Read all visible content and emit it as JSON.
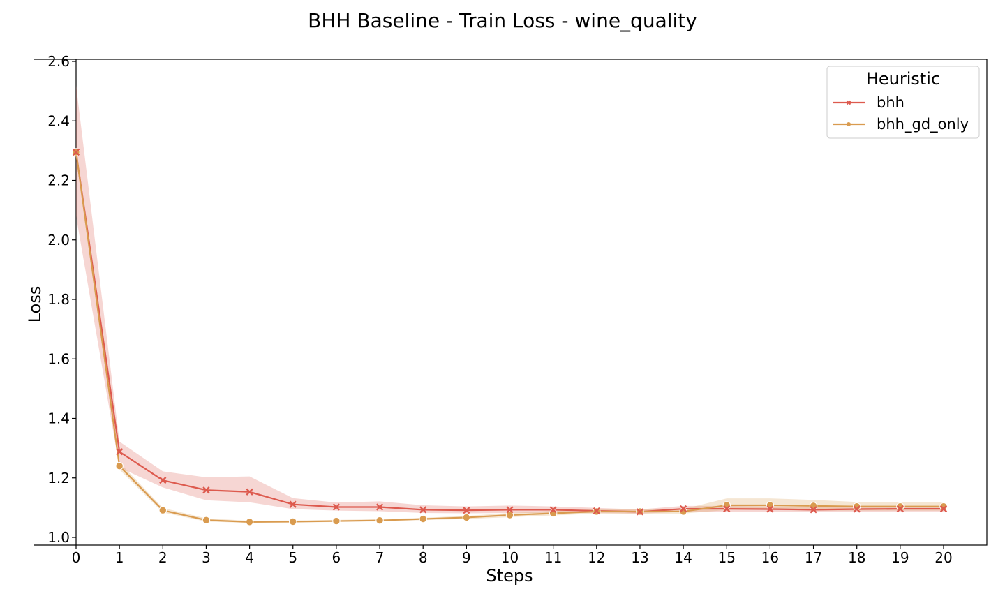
{
  "chart_data": {
    "type": "line",
    "title": "BHH Baseline - Train Loss - wine_quality",
    "xlabel": "Steps",
    "ylabel": "Loss",
    "xlim": [
      0,
      20
    ],
    "ylim": [
      0.98,
      2.6
    ],
    "x": [
      0,
      1,
      2,
      3,
      4,
      5,
      6,
      7,
      8,
      9,
      10,
      11,
      12,
      13,
      14,
      15,
      16,
      17,
      18,
      19,
      20
    ],
    "xticks": [
      "0",
      "1",
      "2",
      "3",
      "4",
      "5",
      "6",
      "7",
      "8",
      "9",
      "10",
      "11",
      "12",
      "13",
      "14",
      "15",
      "16",
      "17",
      "18",
      "19",
      "20"
    ],
    "yticks": [
      "1.0",
      "1.2",
      "1.4",
      "1.6",
      "1.8",
      "2.0",
      "2.2",
      "2.4",
      "2.6"
    ],
    "grid": false,
    "legend": {
      "title": "Heuristic",
      "position": "top-right"
    },
    "series": [
      {
        "name": "bhh",
        "color": "#dd5a4e",
        "marker": "x",
        "values": [
          2.295,
          1.288,
          1.192,
          1.159,
          1.153,
          1.111,
          1.102,
          1.102,
          1.093,
          1.091,
          1.093,
          1.093,
          1.089,
          1.086,
          1.096,
          1.096,
          1.095,
          1.093,
          1.095,
          1.096,
          1.096
        ],
        "lower": [
          2.08,
          1.235,
          1.168,
          1.125,
          1.118,
          1.095,
          1.09,
          1.088,
          1.082,
          1.081,
          1.082,
          1.083,
          1.082,
          1.08,
          1.086,
          1.086,
          1.086,
          1.085,
          1.086,
          1.087,
          1.087
        ],
        "upper": [
          2.52,
          1.322,
          1.222,
          1.202,
          1.205,
          1.132,
          1.117,
          1.121,
          1.108,
          1.104,
          1.107,
          1.104,
          1.099,
          1.094,
          1.106,
          1.106,
          1.104,
          1.102,
          1.104,
          1.105,
          1.105
        ]
      },
      {
        "name": "bhh_gd_only",
        "color": "#d99b4f",
        "marker": "o",
        "values": [
          2.295,
          1.24,
          1.091,
          1.058,
          1.052,
          1.053,
          1.055,
          1.057,
          1.062,
          1.067,
          1.075,
          1.081,
          1.087,
          1.087,
          1.087,
          1.108,
          1.108,
          1.106,
          1.104,
          1.104,
          1.104
        ],
        "lower": [
          2.28,
          1.228,
          1.084,
          1.053,
          1.049,
          1.05,
          1.052,
          1.054,
          1.058,
          1.062,
          1.068,
          1.074,
          1.08,
          1.08,
          1.08,
          1.092,
          1.092,
          1.09,
          1.09,
          1.09,
          1.09
        ],
        "upper": [
          2.31,
          1.252,
          1.099,
          1.064,
          1.056,
          1.057,
          1.059,
          1.061,
          1.066,
          1.072,
          1.082,
          1.089,
          1.095,
          1.095,
          1.095,
          1.131,
          1.131,
          1.126,
          1.119,
          1.119,
          1.119
        ]
      }
    ]
  }
}
